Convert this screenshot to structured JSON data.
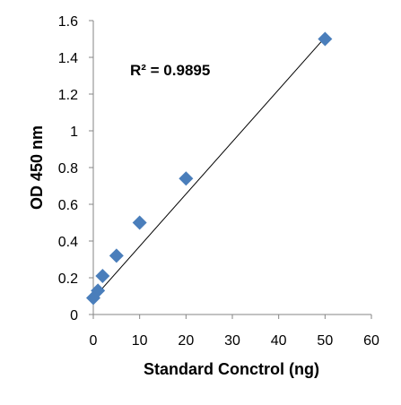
{
  "chart_data": {
    "type": "scatter",
    "title": "",
    "xlabel": "Standard Conctrol (ng)",
    "ylabel": "OD 450 nm",
    "xlim": [
      0,
      60
    ],
    "ylim": [
      0,
      1.6
    ],
    "xticks": [
      0,
      10,
      20,
      30,
      40,
      50,
      60
    ],
    "yticks": [
      0,
      0.2,
      0.4,
      0.6,
      0.8,
      1.0,
      1.2,
      1.4,
      1.6
    ],
    "xtick_labels": [
      "0",
      "10",
      "20",
      "30",
      "40",
      "50",
      "60"
    ],
    "ytick_labels": [
      "0",
      "0.2",
      "0.4",
      "0.6",
      "0.8",
      "1",
      "1.2",
      "1.4",
      "1.6"
    ],
    "grid": false,
    "legend": "none",
    "series": [
      {
        "marker": "diamond",
        "color": "#4a7ebb",
        "x": [
          0,
          1,
          2,
          5,
          10,
          20,
          50
        ],
        "y": [
          0.09,
          0.13,
          0.21,
          0.32,
          0.5,
          0.74,
          1.5
        ]
      }
    ],
    "trendline": {
      "kind": "linear",
      "color": "#000000",
      "x": [
        0,
        50
      ],
      "y": [
        0.087,
        1.509
      ]
    },
    "annotations": [
      {
        "text": "R² = 0.9895"
      }
    ]
  }
}
